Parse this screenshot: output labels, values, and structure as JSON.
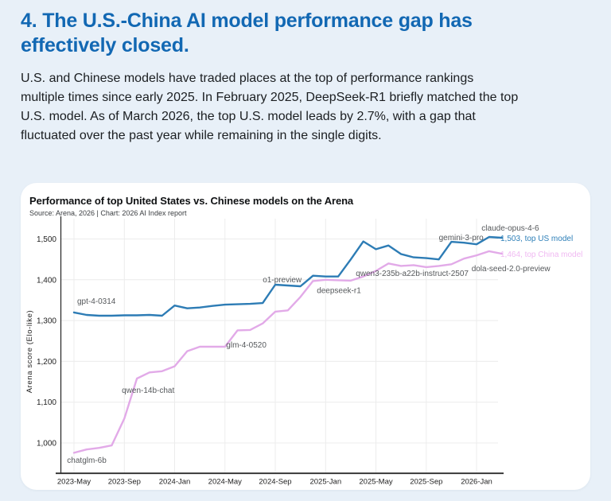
{
  "page": {
    "heading_lines": [
      "4. The U.S.-China AI model performance gap has",
      "effectively closed."
    ],
    "body_lines": [
      "U.S. and Chinese models have traded places at the top of performance rankings",
      "multiple times since early 2025. In February 2025, DeepSeek-R1 briefly matched the top",
      "U.S. model. As of March 2026, the top U.S. model leads by 2.7%, with a gap that",
      "fluctuated over the past  year while remaining in the single digits."
    ],
    "colors": {
      "background": "#e8f0f8",
      "heading": "#1268b3",
      "body_text": "#1b1e21",
      "card_background": "#ffffff"
    }
  },
  "chart_data": {
    "type": "line",
    "title": "Performance of top United States vs. Chinese models on the Arena",
    "source": "Source: Arena, 2026 | Chart: 2026 AI Index report",
    "ylabel": "Arena score (Elo-like)",
    "x_unit": "month",
    "x_start_month": "2023-May",
    "x_end_month": "2026-Mar",
    "x_tick_labels": [
      "2023-May",
      "2023-Sep",
      "2024-Jan",
      "2024-May",
      "2024-Sep",
      "2025-Jan",
      "2025-May",
      "2025-Sep",
      "2026-Jan"
    ],
    "x_tick_months": [
      0,
      4,
      8,
      12,
      16,
      20,
      24,
      28,
      32
    ],
    "y_ticks": [
      1000,
      1100,
      1200,
      1300,
      1400,
      1500
    ],
    "y_tick_labels": [
      "1,000",
      "1,100",
      "1,200",
      "1,300",
      "1,400",
      "1,500"
    ],
    "ylim": [
      926,
      1540
    ],
    "grid": true,
    "grid_color": "#ececec",
    "axis_color": "#2e2e2e",
    "legend_position": "inline-end-labels",
    "series": [
      {
        "name": "top US model",
        "final_label": "1,503, top US model",
        "final_value": 1503,
        "color": "#2d7cb5",
        "label_color": "#2d7fb8",
        "values": [
          1320,
          1314,
          1312,
          1312,
          1313,
          1313,
          1314,
          1312,
          1337,
          1330,
          1332,
          1336,
          1339,
          1340,
          1341,
          1343,
          1388,
          1386,
          1384,
          1410,
          1408,
          1408,
          1450,
          1494,
          1475,
          1484,
          1463,
          1455,
          1453,
          1450,
          1493,
          1491,
          1487,
          1505,
          1503
        ]
      },
      {
        "name": "top China model",
        "final_label": "1,464, top China model",
        "final_value": 1464,
        "color": "#e2aae8",
        "label_color": "#f0b9f2",
        "values": [
          976,
          984,
          988,
          994,
          1060,
          1158,
          1173,
          1176,
          1188,
          1225,
          1236,
          1236,
          1236,
          1276,
          1277,
          1293,
          1322,
          1325,
          1358,
          1397,
          1400,
          1399,
          1398,
          1408,
          1422,
          1440,
          1434,
          1436,
          1431,
          1434,
          1438,
          1452,
          1460,
          1470,
          1464
        ]
      }
    ],
    "annotations": [
      {
        "label": "gpt-4-0314",
        "x": 0.25,
        "v": 1341,
        "color": "#55585b"
      },
      {
        "label": "chatglm-6b",
        "x": -0.55,
        "v": 951,
        "color": "#55585b"
      },
      {
        "label": "qwen-14b-chat",
        "x": 3.8,
        "v": 1123,
        "color": "#55585b"
      },
      {
        "label": "glm-4-0520",
        "x": 12.1,
        "v": 1234,
        "color": "#55585b"
      },
      {
        "label": "o1-preview",
        "x": 15.0,
        "v": 1394,
        "color": "#55585b"
      },
      {
        "label": "deepseek-r1",
        "x": 19.3,
        "v": 1368,
        "color": "#55585b"
      },
      {
        "label": "qwen3-235b-a22b-instruct-2507",
        "x": 22.4,
        "v": 1409,
        "color": "#55585b"
      },
      {
        "label": "gemini-3-pro",
        "x": 29.0,
        "v": 1497,
        "color": "#55585b"
      },
      {
        "label": "claude-opus-4-6",
        "x": 32.4,
        "v": 1521,
        "color": "#55585b"
      },
      {
        "label": "dola-seed-2.0-preview",
        "x": 31.6,
        "v": 1421,
        "color": "#55585b"
      },
      {
        "label": "1,503, top US model",
        "x": 33.9,
        "v": 1495,
        "color": "#2d7fb8"
      },
      {
        "label": "1,464, top China model",
        "x": 33.9,
        "v": 1456,
        "color": "#f0b9f2"
      }
    ]
  }
}
